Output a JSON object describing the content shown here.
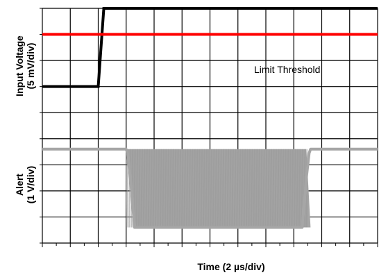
{
  "chart_data": {
    "type": "line",
    "xlabel": "Time (2 µs/div)",
    "x_divisions": 12,
    "y_divisions": 9,
    "grid": true,
    "channels": [
      {
        "ylabel_line1": "Input Voltage",
        "ylabel_line2": "(5 mV/div)",
        "color": "#000000",
        "x": [
          0,
          2,
          2.2,
          12
        ],
        "y": [
          6,
          6,
          9,
          9
        ]
      },
      {
        "ylabel_line1": "Alert",
        "ylabel_line2": "(1 V/div)",
        "color": "#a6a6a6",
        "x": [
          0,
          3,
          3.05,
          3.15,
          3.3,
          9.3,
          9.45,
          9.55,
          9.6,
          12
        ],
        "y": [
          3.6,
          3.6,
          3.45,
          2.5,
          0.6,
          0.6,
          2.5,
          3.45,
          3.6,
          3.6
        ],
        "oscillation": {
          "x_start": 3.0,
          "x_end": 9.6,
          "high": 3.6,
          "low": 0.6
        }
      }
    ],
    "threshold": {
      "label": "Limit Threshold",
      "y": 8,
      "color": "#ff0000"
    }
  }
}
